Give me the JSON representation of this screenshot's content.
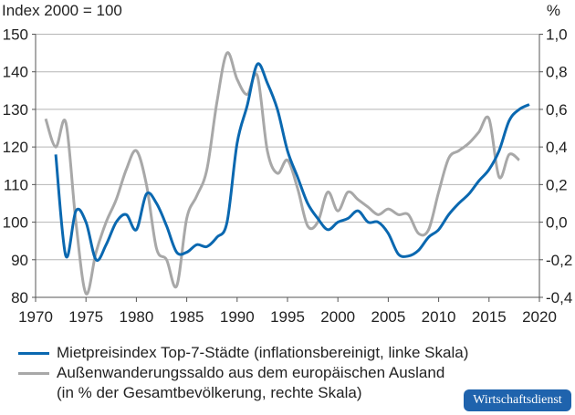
{
  "chart_data": {
    "type": "line",
    "ylabel_left": "Index 2000 = 100",
    "ylabel_right": "%",
    "xlim": [
      1970,
      2020
    ],
    "ylim_left": [
      80,
      150
    ],
    "ylim_right": [
      -0.4,
      1.0
    ],
    "x_ticks": [
      "1970",
      "1975",
      "1980",
      "1985",
      "1990",
      "1995",
      "2000",
      "2005",
      "2010",
      "2015",
      "2020"
    ],
    "y_ticks_left": [
      "80",
      "90",
      "100",
      "110",
      "120",
      "130",
      "140",
      "150"
    ],
    "y_ticks_right": [
      "-0,4",
      "-0,2",
      "0,0",
      "0,2",
      "0,4",
      "0,6",
      "0,8",
      "1,0"
    ],
    "grid": true,
    "legend_position": "bottom",
    "series": [
      {
        "name": "Mietpreisindex Top-7-Städte (inflationsbereinigt, linke Skala)",
        "axis": "left",
        "color": "#0a68b0",
        "x": [
          1972,
          1973,
          1974,
          1975,
          1976,
          1977,
          1978,
          1979,
          1980,
          1981,
          1982,
          1983,
          1984,
          1985,
          1986,
          1987,
          1988,
          1989,
          1990,
          1991,
          1992,
          1993,
          1994,
          1995,
          1996,
          1997,
          1998,
          1999,
          2000,
          2001,
          2002,
          2003,
          2004,
          2005,
          2006,
          2007,
          2008,
          2009,
          2010,
          2011,
          2012,
          2013,
          2014,
          2015,
          2016,
          2017,
          2018,
          2019
        ],
        "values": [
          118,
          91,
          103,
          100,
          90,
          94,
          100,
          102,
          98,
          107.5,
          105,
          99,
          92,
          92,
          94,
          93.5,
          96,
          100,
          121,
          131,
          142,
          137,
          130,
          119,
          112,
          105,
          101,
          98,
          100,
          101,
          103,
          100,
          100,
          97,
          91.5,
          91,
          92.5,
          96,
          98,
          102,
          105,
          107.5,
          111,
          114,
          119,
          127,
          130,
          131.3
        ]
      },
      {
        "name": "Außenwanderungssaldo aus dem europäischen Ausland",
        "name_line2": "(in % der Gesamtbevölkerung, rechte Skala)",
        "axis": "right",
        "color": "#a8a8a8",
        "x": [
          1971,
          1972,
          1973,
          1974,
          1975,
          1976,
          1977,
          1978,
          1979,
          1980,
          1981,
          1982,
          1983,
          1984,
          1985,
          1986,
          1987,
          1988,
          1989,
          1990,
          1991,
          1992,
          1993,
          1994,
          1995,
          1996,
          1997,
          1998,
          1999,
          2000,
          2001,
          2002,
          2003,
          2004,
          2005,
          2006,
          2007,
          2008,
          2009,
          2010,
          2011,
          2012,
          2013,
          2014,
          2015,
          2016,
          2017,
          2018
        ],
        "values": [
          0.55,
          0.4,
          0.53,
          0.0,
          -0.38,
          -0.16,
          0.0,
          0.12,
          0.28,
          0.38,
          0.2,
          -0.14,
          -0.2,
          -0.34,
          0.02,
          0.14,
          0.28,
          0.64,
          0.9,
          0.76,
          0.68,
          0.78,
          0.38,
          0.26,
          0.33,
          0.18,
          -0.02,
          0.0,
          0.16,
          0.06,
          0.16,
          0.12,
          0.08,
          0.04,
          0.07,
          0.04,
          0.04,
          -0.06,
          -0.04,
          0.16,
          0.34,
          0.38,
          0.42,
          0.48,
          0.55,
          0.24,
          0.36,
          0.33
        ]
      }
    ]
  },
  "logo_text": "Wirtschaftsdienst"
}
